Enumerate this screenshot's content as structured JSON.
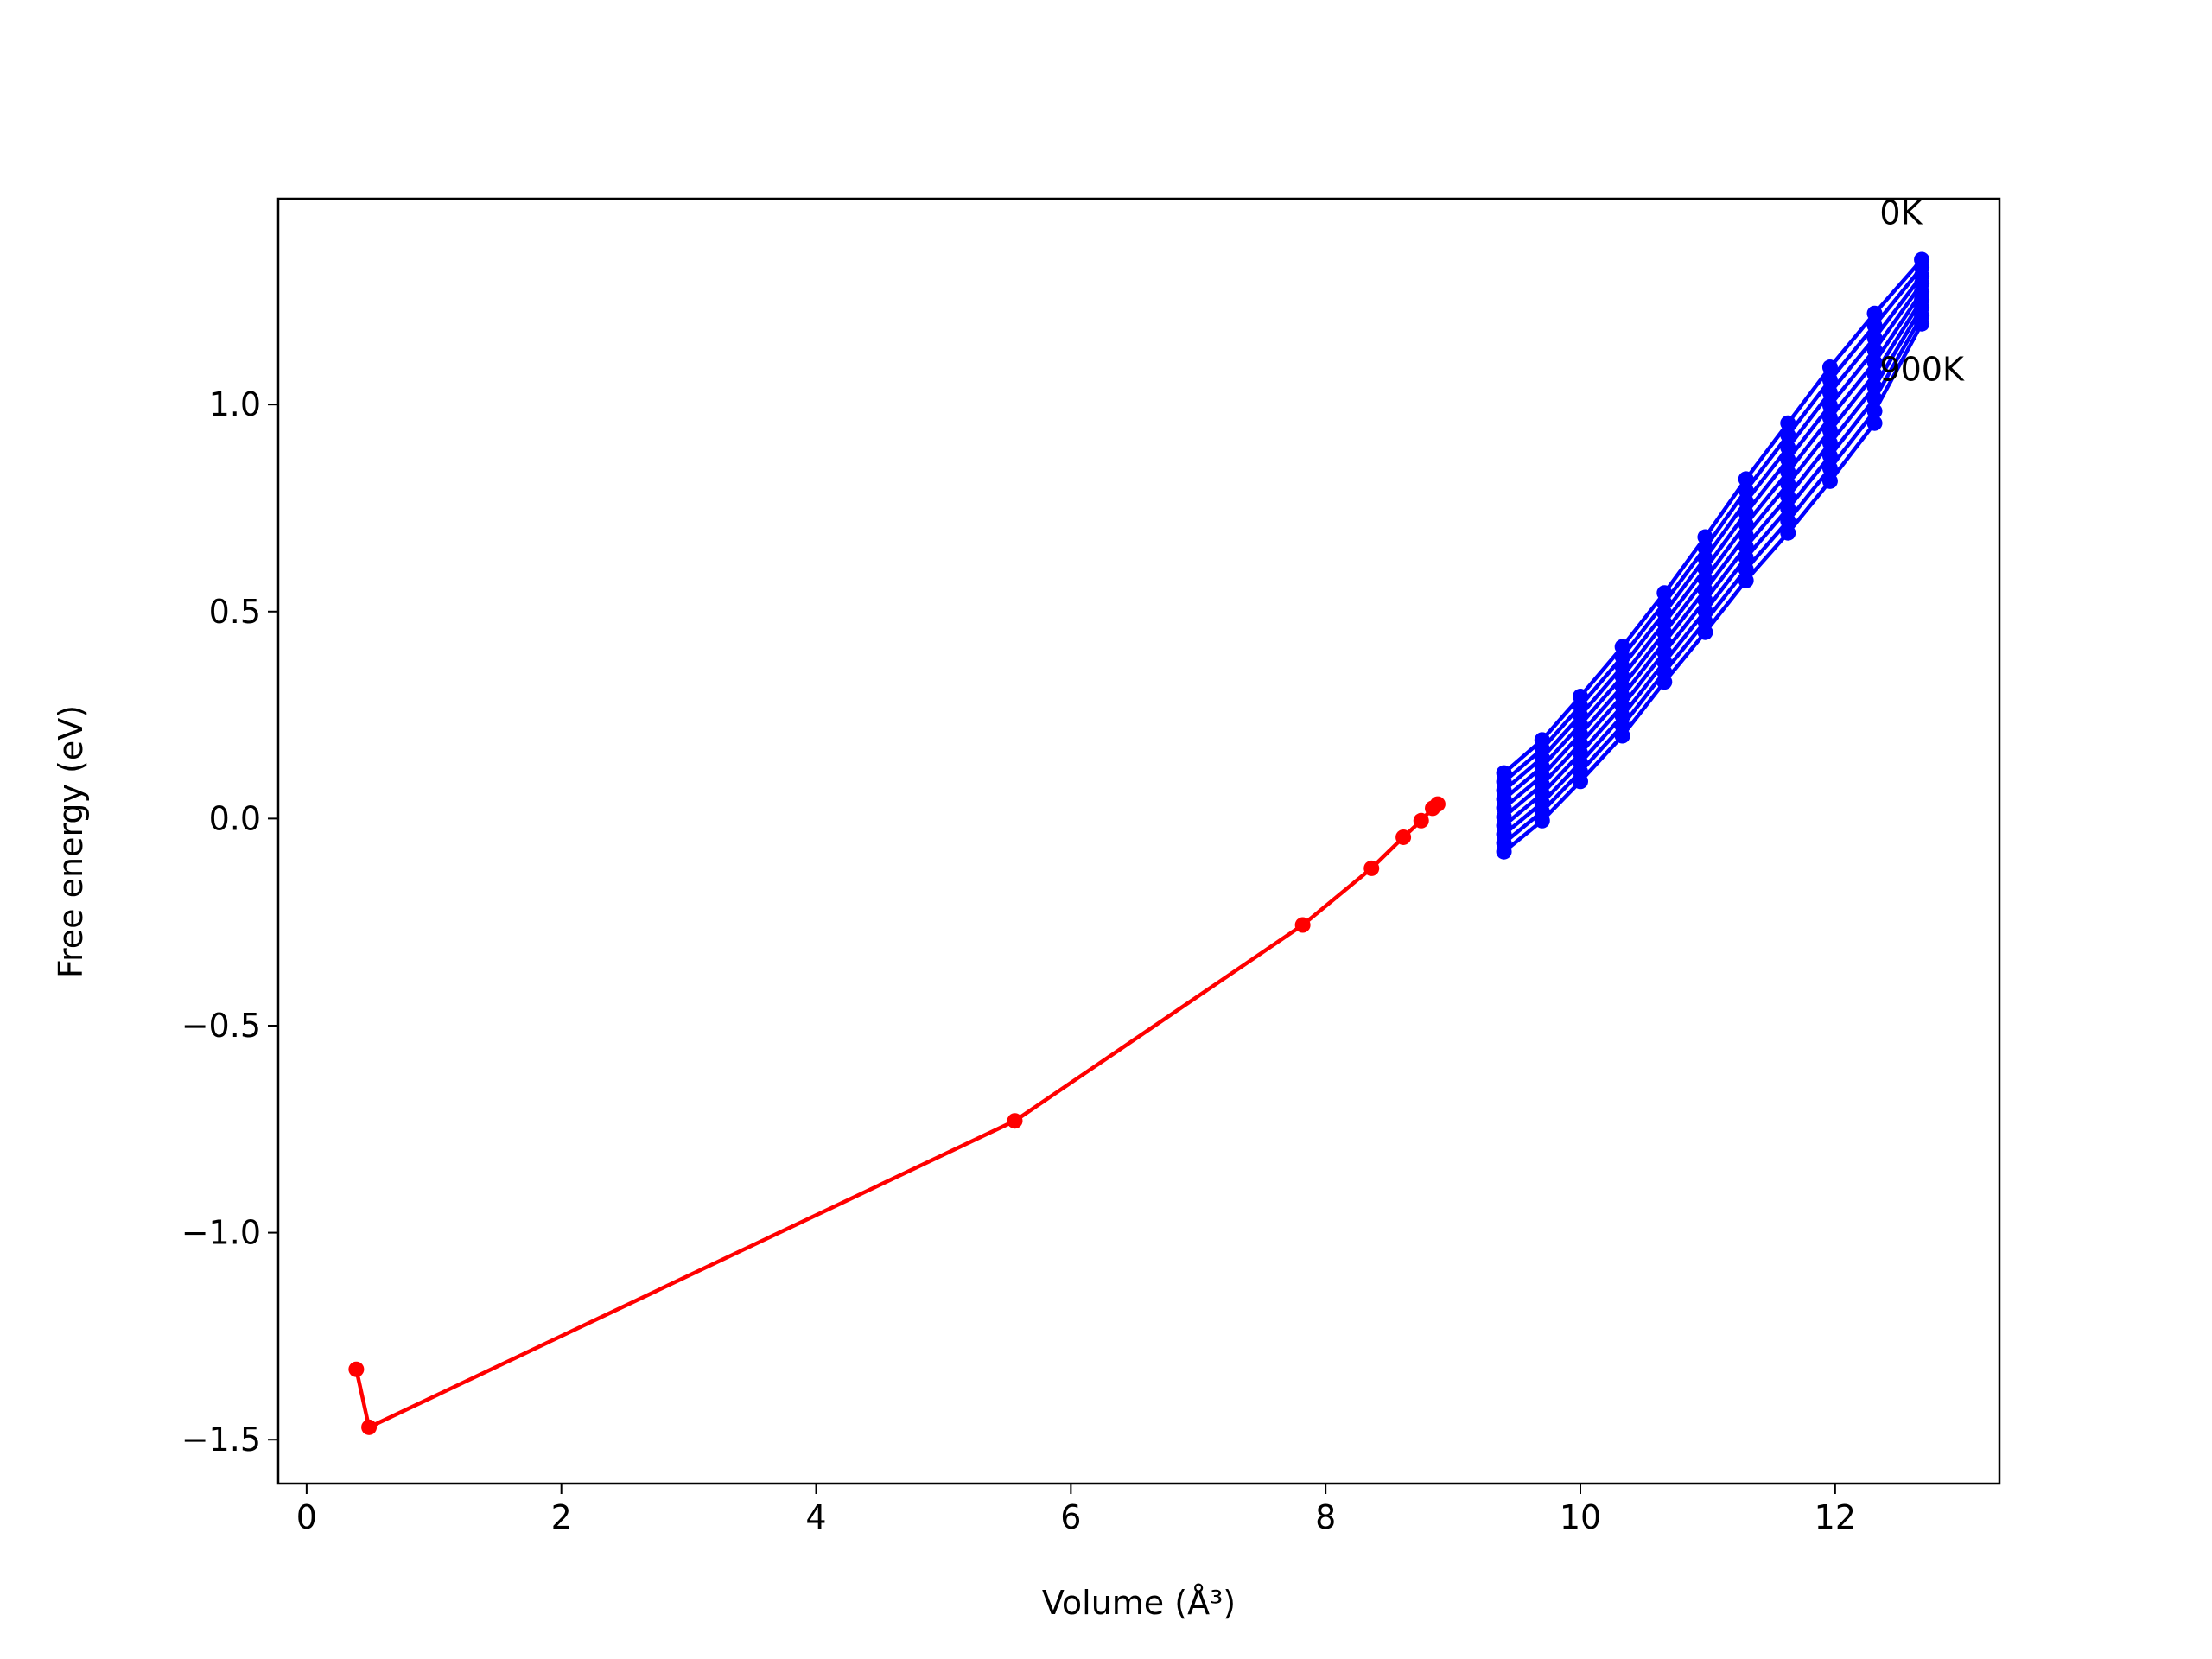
{
  "chart_data": {
    "type": "line",
    "x_label": "Volume (Å³)",
    "y_label": "Free energy (eV)",
    "xlim": [
      -0.223,
      13.29
    ],
    "ylim": [
      -1.606,
      1.497
    ],
    "xticks": [
      0,
      2,
      4,
      6,
      8,
      10,
      12
    ],
    "yticks": [
      {
        "value": -1.5,
        "label": "−1.5"
      },
      {
        "value": -1.0,
        "label": "−1.0"
      },
      {
        "value": -0.5,
        "label": "−0.5"
      },
      {
        "value": 0,
        "label": "0.0"
      },
      {
        "value": 0.5,
        "label": "0.5"
      },
      {
        "value": 1.0,
        "label": "1.0"
      }
    ],
    "series": [
      {
        "color": "#ff0000",
        "x": [
          0.39,
          0.49,
          5.56,
          7.82,
          8.36,
          8.61,
          8.75,
          8.84,
          8.88
        ],
        "values": [
          -1.33,
          -1.47,
          -0.73,
          -0.257,
          -0.12,
          -0.045,
          -0.005,
          0.025,
          0.035
        ]
      },
      {
        "color": "#0000ff",
        "x": [
          9.4,
          9.7,
          10.0,
          10.33,
          10.66,
          10.98,
          11.3,
          11.63,
          11.96,
          12.31,
          12.68
        ],
        "values": [
          0.11,
          0.19,
          0.295,
          0.415,
          0.545,
          0.68,
          0.82,
          0.955,
          1.09,
          1.22,
          1.35
        ]
      },
      {
        "color": "#0000ff",
        "x": [
          9.4,
          9.7,
          10.0,
          10.33,
          10.66,
          10.98,
          11.3,
          11.63,
          11.96,
          12.31,
          12.68
        ],
        "values": [
          0.089,
          0.168,
          0.272,
          0.391,
          0.521,
          0.654,
          0.793,
          0.926,
          1.059,
          1.191,
          1.331
        ]
      },
      {
        "color": "#0000ff",
        "x": [
          9.4,
          9.7,
          10.0,
          10.33,
          10.66,
          10.98,
          11.3,
          11.63,
          11.96,
          12.31,
          12.68
        ],
        "values": [
          0.068,
          0.147,
          0.249,
          0.367,
          0.497,
          0.629,
          0.766,
          0.896,
          1.029,
          1.161,
          1.311
        ]
      },
      {
        "color": "#0000ff",
        "x": [
          9.4,
          9.7,
          10.0,
          10.33,
          10.66,
          10.98,
          11.3,
          11.63,
          11.96,
          12.31,
          12.68
        ],
        "values": [
          0.047,
          0.125,
          0.227,
          0.343,
          0.473,
          0.603,
          0.738,
          0.867,
          0.998,
          1.132,
          1.292
        ]
      },
      {
        "color": "#0000ff",
        "x": [
          9.4,
          9.7,
          10.0,
          10.33,
          10.66,
          10.98,
          11.3,
          11.63,
          11.96,
          12.31,
          12.68
        ],
        "values": [
          0.026,
          0.103,
          0.204,
          0.319,
          0.449,
          0.578,
          0.711,
          0.837,
          0.968,
          1.102,
          1.272
        ]
      },
      {
        "color": "#0000ff",
        "x": [
          9.4,
          9.7,
          10.0,
          10.33,
          10.66,
          10.98,
          11.3,
          11.63,
          11.96,
          12.31,
          12.68
        ],
        "values": [
          0.004,
          0.082,
          0.181,
          0.296,
          0.426,
          0.552,
          0.684,
          0.808,
          0.937,
          1.073,
          1.253
        ]
      },
      {
        "color": "#0000ff",
        "x": [
          9.4,
          9.7,
          10.0,
          10.33,
          10.66,
          10.98,
          11.3,
          11.63,
          11.96,
          12.31,
          12.68
        ],
        "values": [
          -0.017,
          0.06,
          0.158,
          0.272,
          0.402,
          0.527,
          0.657,
          0.778,
          0.907,
          1.043,
          1.234
        ]
      },
      {
        "color": "#0000ff",
        "x": [
          9.4,
          9.7,
          10.0,
          10.33,
          10.66,
          10.98,
          11.3,
          11.63,
          11.96,
          12.31,
          12.68
        ],
        "values": [
          -0.038,
          0.038,
          0.135,
          0.248,
          0.378,
          0.501,
          0.63,
          0.749,
          0.876,
          1.014,
          1.214
        ]
      },
      {
        "color": "#0000ff",
        "x": [
          9.4,
          9.7,
          10.0,
          10.33,
          10.66,
          10.98,
          11.3,
          11.63,
          11.96,
          12.31,
          12.68
        ],
        "values": [
          -0.059,
          0.017,
          0.113,
          0.224,
          0.354,
          0.476,
          0.602,
          0.719,
          0.846,
          0.984,
          1.195
        ]
      },
      {
        "color": "#0000ff",
        "x": [
          9.4,
          9.7,
          10.0,
          10.33,
          10.66,
          10.98,
          11.3,
          11.63,
          11.96,
          12.31,
          12.68
        ],
        "values": [
          -0.08,
          -0.005,
          0.09,
          0.2,
          0.33,
          0.45,
          0.575,
          0.69,
          0.815,
          0.955,
          null
        ]
      }
    ],
    "annotations": [
      {
        "text": "0K",
        "x": 12.35,
        "y": 1.435
      },
      {
        "text": "900K",
        "x": 12.35,
        "y": 1.058
      }
    ]
  }
}
